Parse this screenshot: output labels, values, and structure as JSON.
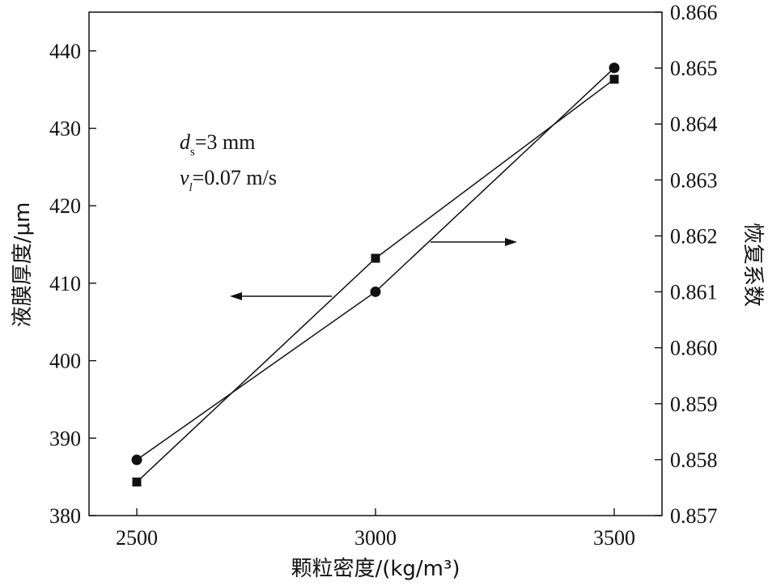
{
  "chart_data": {
    "type": "line",
    "x": [
      2500,
      3000,
      3500
    ],
    "xlabel": "颗粒密度/(kg/m³)",
    "x_ticks": [
      "2500",
      "3000",
      "3500"
    ],
    "xlim": [
      2400,
      3600
    ],
    "y_left": {
      "label": "液膜厚度/μm",
      "lim": [
        380,
        445
      ],
      "ticks": [
        "380",
        "390",
        "400",
        "410",
        "420",
        "430",
        "440"
      ]
    },
    "y_right": {
      "label": "恢复系数",
      "lim": [
        0.857,
        0.866
      ],
      "ticks": [
        "0.857",
        "0.858",
        "0.859",
        "0.860",
        "0.861",
        "0.862",
        "0.863",
        "0.864",
        "0.865",
        "0.866"
      ]
    },
    "series": [
      {
        "axis": "left",
        "marker": "circle",
        "values": [
          387.2,
          408.9,
          437.8
        ]
      },
      {
        "axis": "right",
        "marker": "square",
        "values": [
          0.8576,
          0.8616,
          0.8648
        ]
      }
    ],
    "annotations": {
      "ds": {
        "symbol": "d",
        "sub": "s",
        "text": "=3 mm"
      },
      "vl": {
        "symbol": "v",
        "sub": "l",
        "text": "=0.07 m/s"
      }
    },
    "grid": false,
    "legend": "none"
  }
}
